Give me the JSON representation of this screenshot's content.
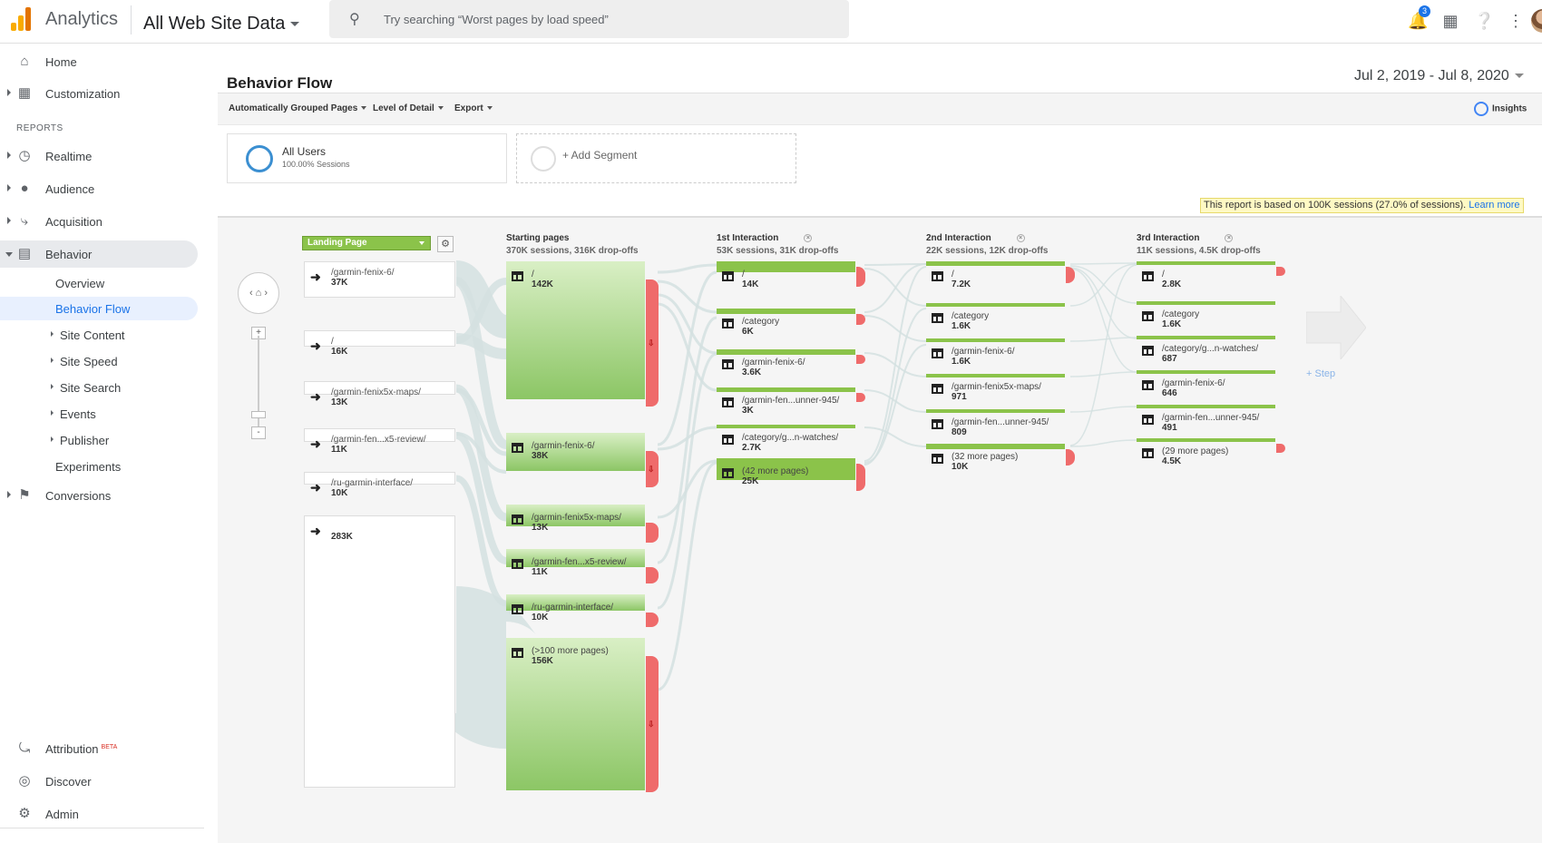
{
  "topbar": {
    "app_name": "Analytics",
    "property": "All Web Site Data",
    "search_placeholder": "Try searching “Worst pages by load speed”",
    "notification_count": "3"
  },
  "sidebar": {
    "home": "Home",
    "customization": "Customization",
    "reports_header": "REPORTS",
    "realtime": "Realtime",
    "audience": "Audience",
    "acquisition": "Acquisition",
    "behavior": "Behavior",
    "behavior_sub": {
      "overview": "Overview",
      "behavior_flow": "Behavior Flow",
      "site_content": "Site Content",
      "site_speed": "Site Speed",
      "site_search": "Site Search",
      "events": "Events",
      "publisher": "Publisher",
      "experiments": "Experiments"
    },
    "conversions": "Conversions",
    "attribution": "Attribution",
    "attribution_badge": "BETA",
    "discover": "Discover",
    "admin": "Admin"
  },
  "page": {
    "title": "Behavior Flow",
    "date_range": "Jul 2, 2019 - Jul 8, 2020",
    "toolbar": {
      "grouped_pages": "Automatically Grouped Pages",
      "level_of_detail": "Level of Detail",
      "export": "Export",
      "insights": "Insights"
    },
    "segments": {
      "all_users": "All Users",
      "all_users_sub": "100.00% Sessions",
      "add_segment": "+ Add Segment"
    },
    "notice": "This report is based on 100K sessions (27.0% of sessions).",
    "notice_link": "Learn more"
  },
  "flow": {
    "landing_select": "Landing Page",
    "add_step": "+ Step",
    "landing_pages": [
      {
        "name": "/garmin-fenix-6/",
        "value": "37K"
      },
      {
        "name": "/",
        "value": "16K"
      },
      {
        "name": "/garmin-fenix5x-maps/",
        "value": "13K"
      },
      {
        "name": "/garmin-fen...x5-review/",
        "value": "11K"
      },
      {
        "name": "/ru-garmin-interface/",
        "value": "10K"
      },
      {
        "name": "",
        "value": "283K"
      }
    ],
    "columns": [
      {
        "title": "Starting pages",
        "subtitle": "370K sessions, 316K drop-offs",
        "nodes": [
          {
            "name": "/",
            "value": "142K"
          },
          {
            "name": "/garmin-fenix-6/",
            "value": "38K"
          },
          {
            "name": "/garmin-fenix5x-maps/",
            "value": "13K"
          },
          {
            "name": "/garmin-fen...x5-review/",
            "value": "11K"
          },
          {
            "name": "/ru-garmin-interface/",
            "value": "10K"
          },
          {
            "name": "(>100 more pages)",
            "value": "156K"
          }
        ]
      },
      {
        "title": "1st Interaction",
        "subtitle": "53K sessions, 31K drop-offs",
        "nodes": [
          {
            "name": "/",
            "value": "14K"
          },
          {
            "name": "/category",
            "value": "6K"
          },
          {
            "name": "/garmin-fenix-6/",
            "value": "3.6K"
          },
          {
            "name": "/garmin-fen...unner-945/",
            "value": "3K"
          },
          {
            "name": "/category/g...n-watches/",
            "value": "2.7K"
          },
          {
            "name": "(42 more pages)",
            "value": "25K"
          }
        ]
      },
      {
        "title": "2nd Interaction",
        "subtitle": "22K sessions, 12K drop-offs",
        "nodes": [
          {
            "name": "/",
            "value": "7.2K"
          },
          {
            "name": "/category",
            "value": "1.6K"
          },
          {
            "name": "/garmin-fenix-6/",
            "value": "1.6K"
          },
          {
            "name": "/garmin-fenix5x-maps/",
            "value": "971"
          },
          {
            "name": "/garmin-fen...unner-945/",
            "value": "809"
          },
          {
            "name": "(32 more pages)",
            "value": "10K"
          }
        ]
      },
      {
        "title": "3rd Interaction",
        "subtitle": "11K sessions, 4.5K drop-offs",
        "nodes": [
          {
            "name": "/",
            "value": "2.8K"
          },
          {
            "name": "/category",
            "value": "1.6K"
          },
          {
            "name": "/category/g...n-watches/",
            "value": "687"
          },
          {
            "name": "/garmin-fenix-6/",
            "value": "646"
          },
          {
            "name": "/garmin-fen...unner-945/",
            "value": "491"
          },
          {
            "name": "(29 more pages)",
            "value": "4.5K"
          }
        ]
      }
    ]
  }
}
